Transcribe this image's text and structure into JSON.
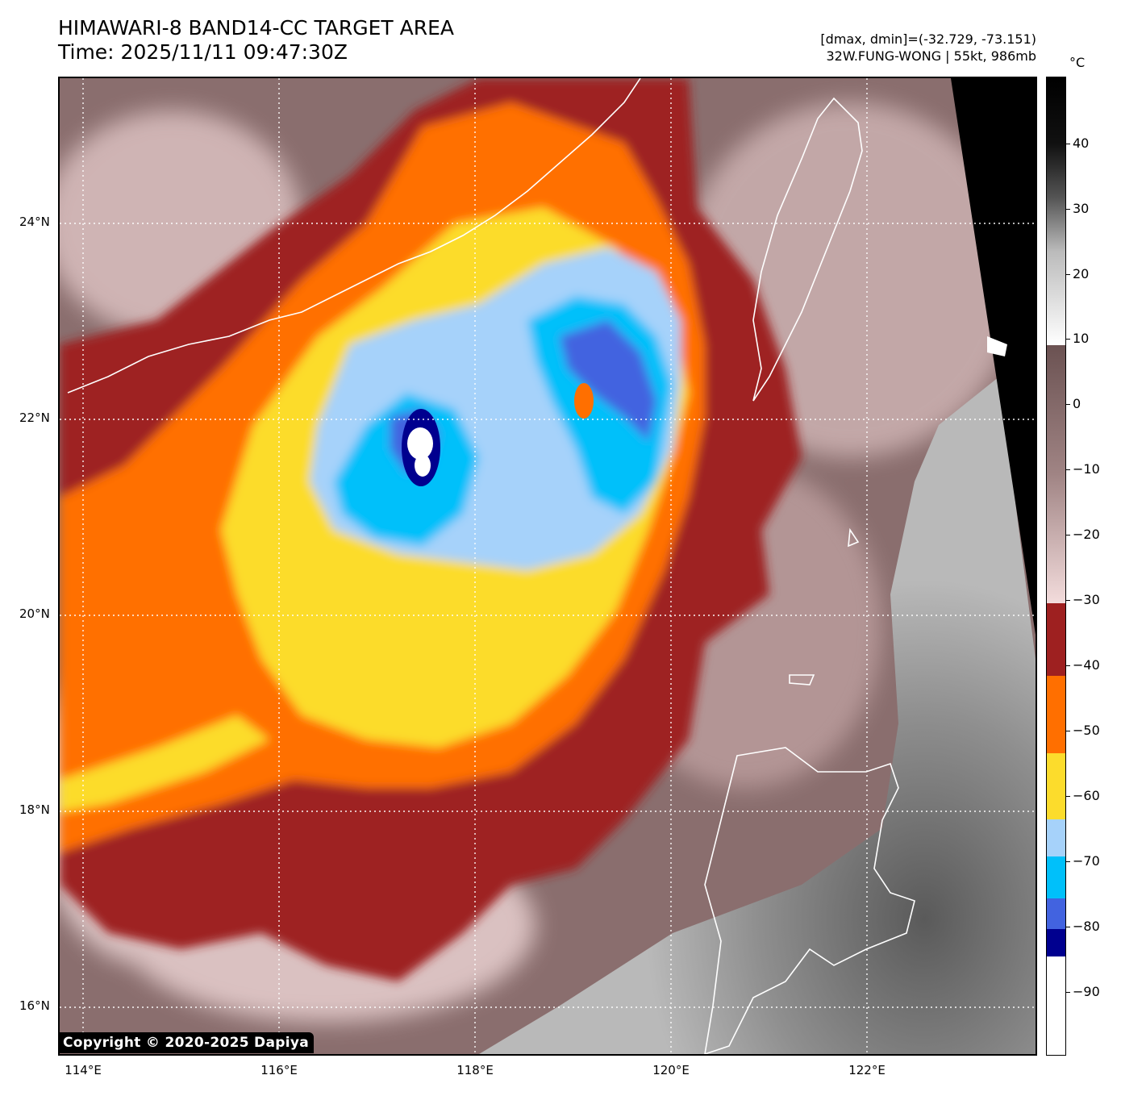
{
  "header": {
    "title_line1": "HIMAWARI-8 BAND14-CC TARGET AREA",
    "title_line2": "Time: 2025/11/11 09:47:30Z",
    "dmax_dmin": "[dmax, dmin]=(-32.729, -73.151)",
    "storm_info": "32W.FUNG-WONG | 55kt, 986mb"
  },
  "axes": {
    "lat_labels": [
      "24°N",
      "22°N",
      "20°N",
      "18°N",
      "16°N"
    ],
    "lon_labels": [
      "114°E",
      "116°E",
      "118°E",
      "120°E",
      "122°E"
    ]
  },
  "colorbar": {
    "unit": "°C",
    "ticks": [
      "40",
      "30",
      "20",
      "10",
      "0",
      "−10",
      "−20",
      "−30",
      "−40",
      "−50",
      "−60",
      "−70",
      "−80",
      "−90"
    ],
    "colors": {
      "warm_black": "#000000",
      "warm_white": "#ffffff",
      "mid_brown": "#8a6e6e",
      "light_pink": "#f3dcdc",
      "dark_red": "#9e2020",
      "orange": "#ff6f00",
      "yellow": "#fcdc2c",
      "light_blue": "#a6d2fa",
      "cyan": "#00c0fa",
      "royal_blue": "#4263e0",
      "navy": "#00008f",
      "cold_white": "#ffffff"
    }
  },
  "copyright": "Copyright © 2020-2025 Dapiya"
}
